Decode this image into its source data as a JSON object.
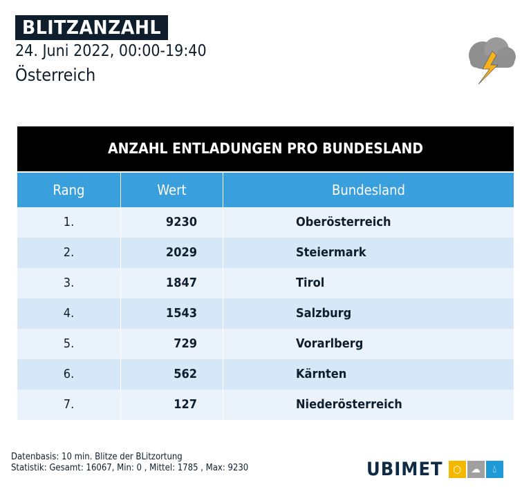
{
  "header": {
    "title": "BLITZANZAHL",
    "date": "24. Juni 2022, 00:00-19:40",
    "region": "Österreich",
    "icon": "thunderstorm-cloud-icon"
  },
  "table": {
    "title": "ANZAHL ENTLADUNGEN PRO BUNDESLAND",
    "columns": [
      "Rang",
      "Wert",
      "Bundesland"
    ],
    "rows": [
      [
        "1.",
        "9230",
        "Oberösterreich"
      ],
      [
        "2.",
        "2029",
        "Steiermark"
      ],
      [
        "3.",
        "1847",
        "Tirol"
      ],
      [
        "4.",
        "1543",
        "Salzburg"
      ],
      [
        "5.",
        "729",
        "Vorarlberg"
      ],
      [
        "6.",
        "562",
        "Kärnten"
      ],
      [
        "7.",
        "127",
        "Niederösterreich"
      ]
    ]
  },
  "footer": {
    "line1": "Datenbasis: 10 min. Blitze der BLitzortung",
    "line2": "Statistik: Gesamt: 16067, Min: 0 , Mittel: 1785 , Max: 9230"
  },
  "logo": {
    "text": "UBIMET",
    "colors": [
      "#f5b800",
      "#a0a0a0",
      "#1e9ad6"
    ]
  },
  "colors": {
    "header_blue": "#3a9fdd",
    "dark": "#0f1e2d"
  }
}
